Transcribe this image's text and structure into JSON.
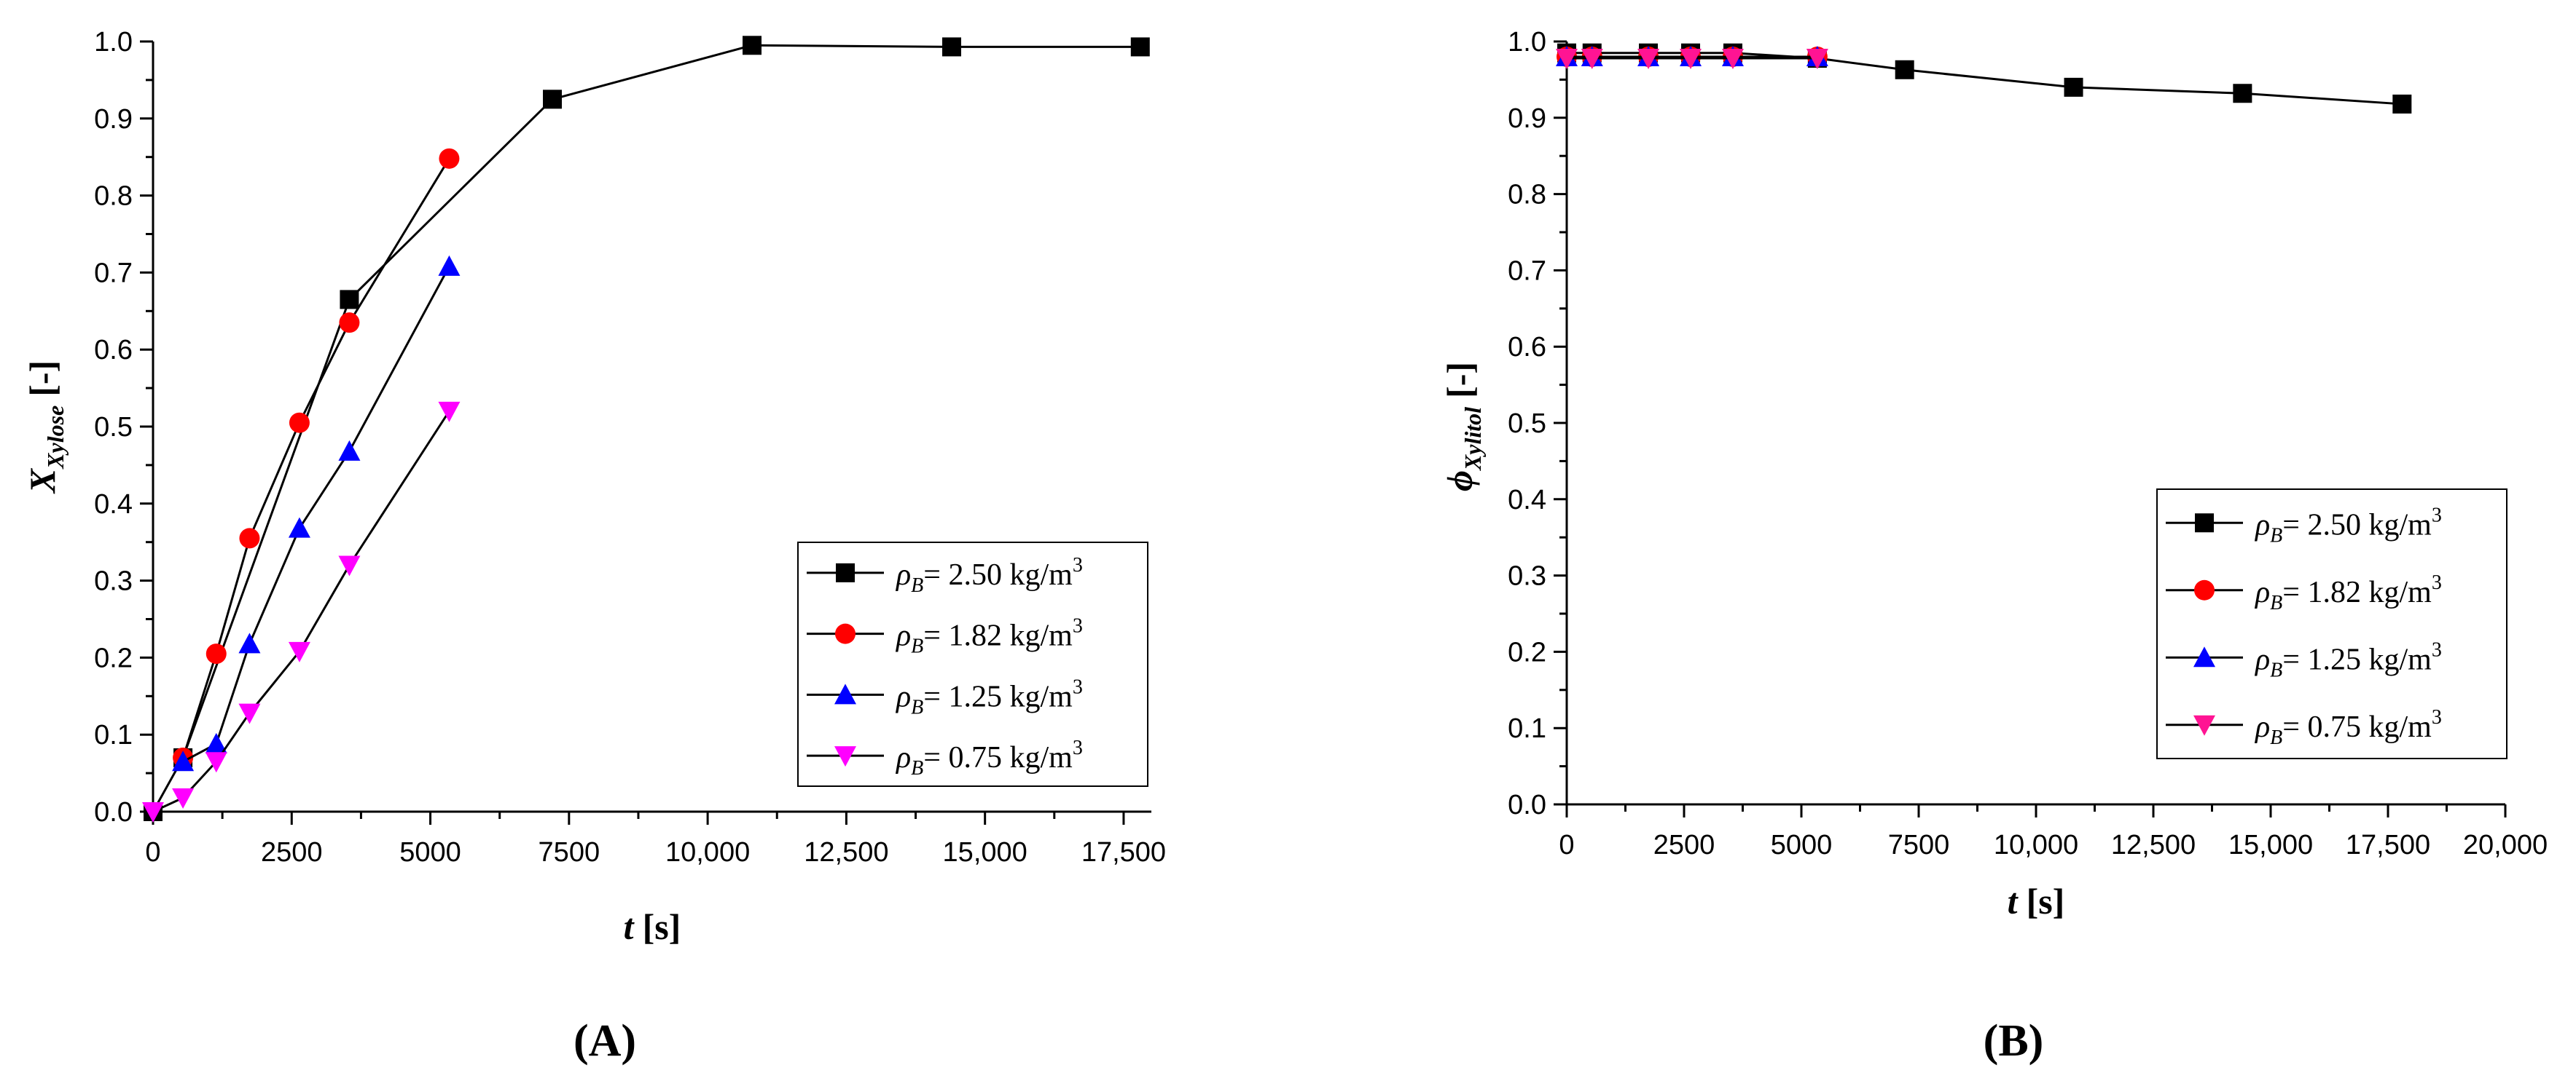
{
  "chart_data": [
    {
      "type": "line",
      "panel_label": "A",
      "xlabel_var": "t",
      "xlabel_unit": "[s]",
      "ylabel_var": "X",
      "ylabel_sub": "Xylose",
      "ylabel_unit": "[-]",
      "xlim": [
        0,
        18000
      ],
      "ylim": [
        0,
        1.0
      ],
      "x_ticks": [
        0,
        2500,
        5000,
        7500,
        10000,
        12500,
        15000,
        17500
      ],
      "x_tick_labels": [
        "0",
        "2500",
        "5000",
        "7500",
        "10,000",
        "12,500",
        "15,000",
        "17,500"
      ],
      "y_ticks": [
        0,
        0.1,
        0.2,
        0.3,
        0.4,
        0.5,
        0.6,
        0.7,
        0.8,
        0.9,
        1.0
      ],
      "y_tick_labels": [
        "0.0",
        "0.1",
        "0.2",
        "0.3",
        "0.4",
        "0.5",
        "0.6",
        "0.7",
        "0.8",
        "0.9",
        "1.0"
      ],
      "legend_placement": "lower-right",
      "series": [
        {
          "name": "ρ_B= 2.50 kg/m³",
          "label_prefix": "ρ",
          "label_sub": "B",
          "label_value": "= 2.50 kg/m",
          "label_sup": "3",
          "marker": "square",
          "color": "#000000",
          "x": [
            0,
            540,
            3540,
            7200,
            10800,
            14400,
            17800
          ],
          "y": [
            0.0,
            0.07,
            0.665,
            0.925,
            0.995,
            0.993,
            0.993
          ]
        },
        {
          "name": "ρ_B= 1.82 kg/m³",
          "label_prefix": "ρ",
          "label_sub": "B",
          "label_value": "= 1.82 kg/m",
          "label_sup": "3",
          "marker": "circle",
          "color": "#ff0000",
          "x": [
            540,
            1140,
            1740,
            2640,
            3540,
            5340
          ],
          "y": [
            0.07,
            0.205,
            0.355,
            0.505,
            0.635,
            0.848
          ]
        },
        {
          "name": "ρ_B= 1.25 kg/m³",
          "label_prefix": "ρ",
          "label_sub": "B",
          "label_value": "= 1.25 kg/m",
          "label_sup": "3",
          "marker": "triangle-up",
          "color": "#0000ff",
          "x": [
            540,
            1140,
            1740,
            2640,
            3540,
            5340
          ],
          "y": [
            0.065,
            0.088,
            0.218,
            0.368,
            0.468,
            0.708
          ]
        },
        {
          "name": "ρ_B= 0.75 kg/m³",
          "label_prefix": "ρ",
          "label_sub": "B",
          "label_value": "= 0.75 kg/m",
          "label_sup": "3",
          "marker": "triangle-down",
          "color": "#ff00ff",
          "x": [
            0,
            540,
            1140,
            1740,
            2640,
            3540,
            5340
          ],
          "y": [
            0.0,
            0.018,
            0.065,
            0.128,
            0.208,
            0.32,
            0.52
          ]
        }
      ]
    },
    {
      "type": "line",
      "panel_label": "B",
      "xlabel_var": "t",
      "xlabel_unit": "[s]",
      "ylabel_var": "ϕ",
      "ylabel_sub": "Xylitol",
      "ylabel_unit": "[-]",
      "xlim": [
        0,
        20000
      ],
      "ylim": [
        0,
        1.0
      ],
      "x_ticks": [
        0,
        2500,
        5000,
        7500,
        10000,
        12500,
        15000,
        17500,
        20000
      ],
      "x_tick_labels": [
        "0",
        "2500",
        "5000",
        "7500",
        "10,000",
        "12,500",
        "15,000",
        "17,500",
        "20,000"
      ],
      "y_ticks": [
        0,
        0.1,
        0.2,
        0.3,
        0.4,
        0.5,
        0.6,
        0.7,
        0.8,
        0.9,
        1.0
      ],
      "y_tick_labels": [
        "0.0",
        "0.1",
        "0.2",
        "0.3",
        "0.4",
        "0.5",
        "0.6",
        "0.7",
        "0.8",
        "0.9",
        "1.0"
      ],
      "legend_placement": "middle-right",
      "series": [
        {
          "name": "ρ_B= 2.50 kg/m³",
          "label_prefix": "ρ",
          "label_sub": "B",
          "label_value": "= 2.50 kg/m",
          "label_sup": "3",
          "marker": "square",
          "color": "#000000",
          "x": [
            0,
            540,
            1740,
            2640,
            3540,
            5340,
            7200,
            10800,
            14400,
            17800
          ],
          "y": [
            0.985,
            0.985,
            0.985,
            0.985,
            0.985,
            0.978,
            0.963,
            0.94,
            0.932,
            0.918
          ]
        },
        {
          "name": "ρ_B= 1.82 kg/m³",
          "label_prefix": "ρ",
          "label_sub": "B",
          "label_value": "= 1.82 kg/m",
          "label_sup": "3",
          "marker": "circle",
          "color": "#ff0000",
          "x": [
            0,
            540,
            1740,
            2640,
            3540,
            5340
          ],
          "y": [
            0.98,
            0.98,
            0.98,
            0.98,
            0.98,
            0.98
          ]
        },
        {
          "name": "ρ_B= 1.25 kg/m³",
          "label_prefix": "ρ",
          "label_sub": "B",
          "label_value": "= 1.25 kg/m",
          "label_sup": "3",
          "marker": "triangle-up",
          "color": "#0000ff",
          "x": [
            0,
            540,
            1740,
            2640,
            3540,
            5340
          ],
          "y": [
            0.98,
            0.98,
            0.98,
            0.98,
            0.98,
            0.98
          ]
        },
        {
          "name": "ρ_B= 0.75 kg/m³",
          "label_prefix": "ρ",
          "label_sub": "B",
          "label_value": "= 0.75 kg/m",
          "label_sup": "3",
          "marker": "triangle-down",
          "color": "#ff1493",
          "x": [
            0,
            540,
            1740,
            2640,
            3540,
            5340
          ],
          "y": [
            0.978,
            0.978,
            0.978,
            0.978,
            0.978,
            0.978
          ]
        }
      ]
    }
  ]
}
